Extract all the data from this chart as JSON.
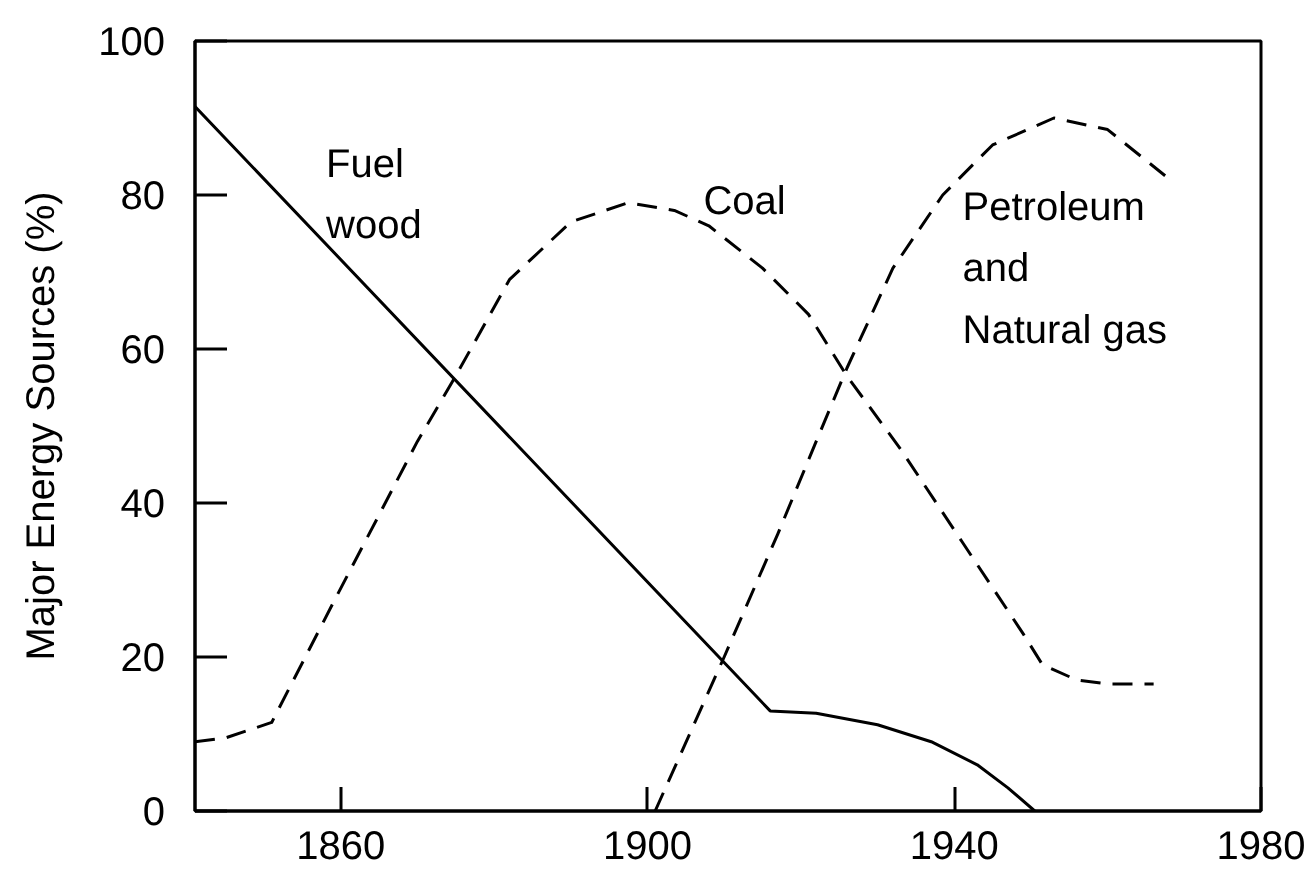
{
  "chart_data": {
    "type": "line",
    "ylabel": "Major Energy Sources (%)",
    "xlim": [
      1841,
      1980
    ],
    "xticks": [
      1860,
      1900,
      1940,
      1980
    ],
    "ylim": [
      0,
      100
    ],
    "yticks": [
      0,
      20,
      40,
      60,
      80,
      100
    ],
    "grid": false,
    "legend": false,
    "series": [
      {
        "name": "Fuel\nwood",
        "color": "#000000",
        "line_style": "solid",
        "x": [
          1841,
          1916,
          1922,
          1930,
          1937,
          1943,
          1947,
          1950.5
        ],
        "values": [
          91.5,
          13,
          12.7,
          11.2,
          9,
          6,
          3,
          0
        ]
      },
      {
        "name": "Coal",
        "color": "#000000",
        "line_style": "dashed",
        "x": [
          1841,
          1845,
          1851,
          1859,
          1870,
          1875,
          1882,
          1890,
          1897.5,
          1903.5,
          1908,
          1915,
          1921,
          1926,
          1933,
          1941,
          1949,
          1951.5,
          1956,
          1960,
          1966
        ],
        "values": [
          9,
          9.5,
          11.5,
          27,
          48,
          56.5,
          69,
          76.5,
          79,
          78,
          76,
          70.5,
          64.5,
          56.5,
          47,
          35,
          23,
          19,
          17,
          16.5,
          16.5
        ]
      },
      {
        "name": "Petroleum\nand\nNatural gas",
        "color": "#000000",
        "line_style": "dashed",
        "x": [
          1901,
          1910,
          1917,
          1922,
          1926,
          1932,
          1938.5,
          1945,
          1953,
          1960,
          1967.5
        ],
        "values": [
          0,
          20,
          36,
          48,
          57.5,
          70.5,
          80,
          86.5,
          90,
          88.5,
          82.5
        ]
      }
    ]
  }
}
